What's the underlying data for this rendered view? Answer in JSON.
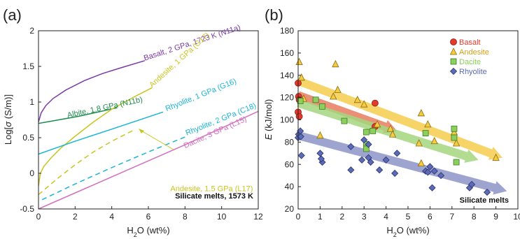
{
  "chart_data": [
    {
      "panel": "(a)",
      "type": "line",
      "xlabel": "H2O (wt%)",
      "ylabel": "Log[σ (S/m)]",
      "xlim": [
        0,
        12
      ],
      "ylim": [
        -0.5,
        2
      ],
      "xticks": [
        0,
        2,
        4,
        6,
        8,
        10,
        12
      ],
      "yticks": [
        -0.5,
        0,
        0.5,
        1,
        1.5,
        2
      ],
      "annotation_box": "Silicate melts, 1573 K",
      "series": [
        {
          "name": "Basalt, 2 GPa, 1723 K (N11a)",
          "color": "#7b3aa6",
          "dashed": false,
          "x": [
            0,
            0.15,
            0.4,
            0.8,
            1.5,
            2.5,
            3.5,
            4.5,
            5.8
          ],
          "y": [
            0.72,
            0.85,
            0.95,
            1.05,
            1.17,
            1.3,
            1.4,
            1.48,
            1.58
          ],
          "label_x": 5.8,
          "label_y": 1.58,
          "label_rot": -18
        },
        {
          "name": "Albite, 1.8 GPa (N11b)",
          "color": "#1d8a4e",
          "dashed": false,
          "x": [
            0,
            2.2,
            4.3
          ],
          "y": [
            0.7,
            0.8,
            0.92
          ],
          "label_x": 1.6,
          "label_y": 0.78,
          "label_rot": -12
        },
        {
          "name": "Andesite, 1 GPa (G17)",
          "color": "#c8c51e",
          "dashed": false,
          "x": [
            0,
            0.1,
            0.3,
            0.7,
            1.2,
            2,
            3,
            4,
            5.2,
            6.2
          ],
          "y": [
            -0.18,
            0.0,
            0.1,
            0.22,
            0.35,
            0.52,
            0.72,
            0.9,
            1.07,
            1.2
          ],
          "label_x": 6.2,
          "label_y": 1.2,
          "label_rot": -42
        },
        {
          "name": "Andesite, 1.5 GPa (L17)",
          "color": "#c8c51e",
          "dashed": true,
          "x": [
            0,
            1,
            2,
            3,
            4,
            5.3
          ],
          "y": [
            -0.3,
            -0.08,
            0.12,
            0.3,
            0.45,
            0.62
          ],
          "label_x": 7.2,
          "label_y": -0.25,
          "label_rot": 0
        },
        {
          "name": "Rhyolite, 1 GPa (G16)",
          "color": "#1ab4d6",
          "dashed": false,
          "x": [
            0,
            2,
            4,
            6.8
          ],
          "y": [
            0.27,
            0.45,
            0.62,
            0.86
          ],
          "label_x": 7.0,
          "label_y": 0.87,
          "label_rot": -22
        },
        {
          "name": "Rhyolite, 2 GPa (C18)",
          "color": "#1ab4d6",
          "dashed": true,
          "x": [
            0.2,
            2,
            4,
            6,
            8.1
          ],
          "y": [
            -0.37,
            -0.15,
            0.08,
            0.3,
            0.52
          ],
          "label_x": 8.1,
          "label_y": 0.53,
          "label_rot": -22
        },
        {
          "name": "Dacite, 3 GPa (L15)",
          "color": "#d26fbe",
          "dashed": false,
          "x": [
            0,
            4,
            8,
            12
          ],
          "y": [
            -0.5,
            -0.05,
            0.4,
            0.87
          ],
          "label_x": 8.0,
          "label_y": 0.35,
          "label_rot": -24
        }
      ]
    },
    {
      "panel": "(b)",
      "type": "scatter",
      "xlabel": "H2O (wt%)",
      "ylabel": "E (kJ/mol)",
      "xlim": [
        0,
        10
      ],
      "ylim": [
        20,
        180
      ],
      "xticks": [
        0,
        1,
        2,
        3,
        4,
        5,
        6,
        7,
        8,
        9,
        10
      ],
      "yticks": [
        20,
        40,
        60,
        80,
        100,
        120,
        140,
        160,
        180
      ],
      "annotation_box": "Silicate melts",
      "legend": [
        {
          "name": "Basalt",
          "marker": "circle",
          "fill": "#e23a2b",
          "stroke": "#8b1a14"
        },
        {
          "name": "Andesite",
          "marker": "triangle",
          "fill": "#f4cc3f",
          "stroke": "#8a6a12"
        },
        {
          "name": "Dacite",
          "marker": "square",
          "fill": "#8ccf5c",
          "stroke": "#3f7a25"
        },
        {
          "name": "Rhyolite",
          "marker": "diamond",
          "fill": "#5c6bb5",
          "stroke": "#2a3370"
        }
      ],
      "trend_arrows": [
        {
          "color": "#e77b5e",
          "x": [
            0,
            4.5
          ],
          "y": [
            122,
            90
          ]
        },
        {
          "color": "#f5cc4e",
          "x": [
            0,
            9.3
          ],
          "y": [
            135,
            66
          ]
        },
        {
          "color": "#a5d67e",
          "x": [
            0,
            8.2
          ],
          "y": [
            115,
            64
          ]
        },
        {
          "color": "#8c94c8",
          "x": [
            0,
            9.5
          ],
          "y": [
            86,
            36
          ]
        }
      ],
      "series": [
        {
          "name": "Basalt",
          "x": [
            0,
            0.02,
            0.05,
            0.0,
            0.05,
            3.5,
            3.5
          ],
          "y": [
            133,
            121,
            118,
            107,
            103,
            115,
            94
          ]
        },
        {
          "name": "Andesite",
          "x": [
            0.05,
            0.15,
            0.25,
            1.0,
            1.6,
            1.8,
            1.7,
            2.7,
            3.0,
            3.6,
            4.2,
            4.3,
            5.5,
            5.6,
            5.9,
            5.6,
            6.2,
            7.1,
            7.2,
            9.0
          ],
          "y": [
            152,
            138,
            119,
            86,
            121,
            127,
            150,
            118,
            114,
            96,
            92,
            87,
            79,
            106,
            96,
            61,
            81,
            89,
            79,
            66
          ]
        },
        {
          "name": "Dacite",
          "x": [
            0.1,
            0.8,
            1.1,
            2.1,
            3.1,
            3.1,
            3.1,
            3.4,
            5.8,
            7.1,
            7.1,
            7.2
          ],
          "y": [
            117,
            118,
            112,
            99,
            89,
            78,
            74,
            90,
            88,
            92,
            84,
            62
          ]
        },
        {
          "name": "Rhyolite",
          "x": [
            0.0,
            0.02,
            0.1,
            0.15,
            0.12,
            1.0,
            1.1,
            1.05,
            2.4,
            2.4,
            2.9,
            3.0,
            3.2,
            3.2,
            3.3,
            3.7,
            4.0,
            4.4,
            4.5,
            5.8,
            5.9,
            6.0,
            6.1,
            6.2,
            6.5,
            7.8,
            7.9,
            8.6
          ],
          "y": [
            84,
            87,
            90,
            68,
            85,
            70,
            62,
            65,
            76,
            55,
            64,
            82,
            66,
            78,
            62,
            55,
            64,
            52,
            70,
            54,
            53,
            58,
            39,
            54,
            50,
            39,
            42,
            35
          ]
        }
      ]
    }
  ]
}
